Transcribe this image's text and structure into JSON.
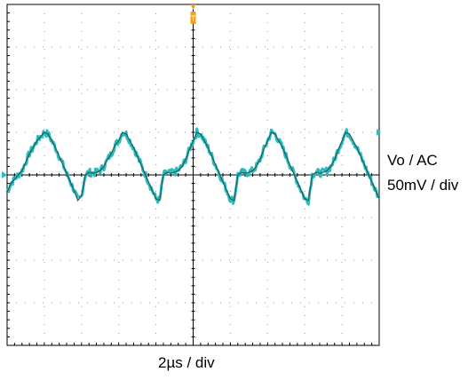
{
  "chart_data": {
    "type": "line",
    "title": "",
    "channel_label_line1": "Vo / AC",
    "channel_label_line2": "50mV / div",
    "time_label": "2µs / div",
    "grid": "dotted",
    "divisions": {
      "x": 10,
      "y": 8
    },
    "xlim": [
      0,
      20
    ],
    "ylim": [
      -200,
      200
    ],
    "x_unit": "µs",
    "y_unit": "mV",
    "trigger_marker": "T",
    "series": [
      {
        "color": "#2bbcc0",
        "dark_color": "#1e5f5c",
        "x": [
          0,
          0.2,
          0.4,
          0.6,
          0.8,
          1.0,
          1.2,
          1.4,
          1.6,
          1.8,
          2.0,
          2.2,
          2.4,
          2.6,
          2.8,
          3.0,
          3.2,
          3.4,
          3.6,
          3.8,
          4.0,
          4.2,
          4.4,
          4.6,
          4.8,
          5.0,
          5.2,
          5.4,
          5.6,
          5.8,
          6.0,
          6.2,
          6.4,
          6.6,
          6.8,
          7.0,
          7.2,
          7.4,
          7.6,
          7.8,
          8.0,
          8.2,
          8.4,
          8.6,
          8.8,
          9.0,
          9.2,
          9.4,
          9.6,
          9.8,
          10.0,
          10.2,
          10.4,
          10.6,
          10.8,
          11.0,
          11.2,
          11.4,
          11.6,
          11.8,
          12.0,
          12.2,
          12.4,
          12.6,
          12.8,
          13.0,
          13.2,
          13.4,
          13.6,
          13.8,
          14.0,
          14.2,
          14.4,
          14.6,
          14.8,
          15.0,
          15.2,
          15.4,
          15.6,
          15.8,
          16.0,
          16.2,
          16.4,
          16.6,
          16.8,
          17.0,
          17.2,
          17.4,
          17.6,
          17.8,
          18.0,
          18.2,
          18.4,
          18.6,
          18.8,
          19.0,
          19.2,
          19.4,
          19.6,
          19.8,
          20.0
        ],
        "y": [
          -20,
          -10,
          -5,
          0,
          5,
          15,
          25,
          32,
          40,
          45,
          50,
          48,
          40,
          32,
          22,
          12,
          2,
          -8,
          -18,
          -30,
          -25,
          0,
          3,
          2,
          3,
          5,
          10,
          18,
          25,
          35,
          40,
          50,
          48,
          40,
          32,
          22,
          12,
          2,
          -8,
          -18,
          -28,
          -30,
          0,
          3,
          2,
          3,
          5,
          10,
          18,
          30,
          40,
          50,
          48,
          40,
          32,
          22,
          12,
          2,
          -8,
          -18,
          -28,
          -30,
          0,
          3,
          2,
          3,
          5,
          10,
          18,
          30,
          40,
          50,
          48,
          40,
          32,
          22,
          12,
          2,
          -8,
          -18,
          -28,
          -30,
          0,
          3,
          2,
          3,
          5,
          10,
          18,
          30,
          40,
          50,
          48,
          40,
          32,
          22,
          12,
          2,
          -8,
          -18,
          -28
        ]
      }
    ]
  }
}
